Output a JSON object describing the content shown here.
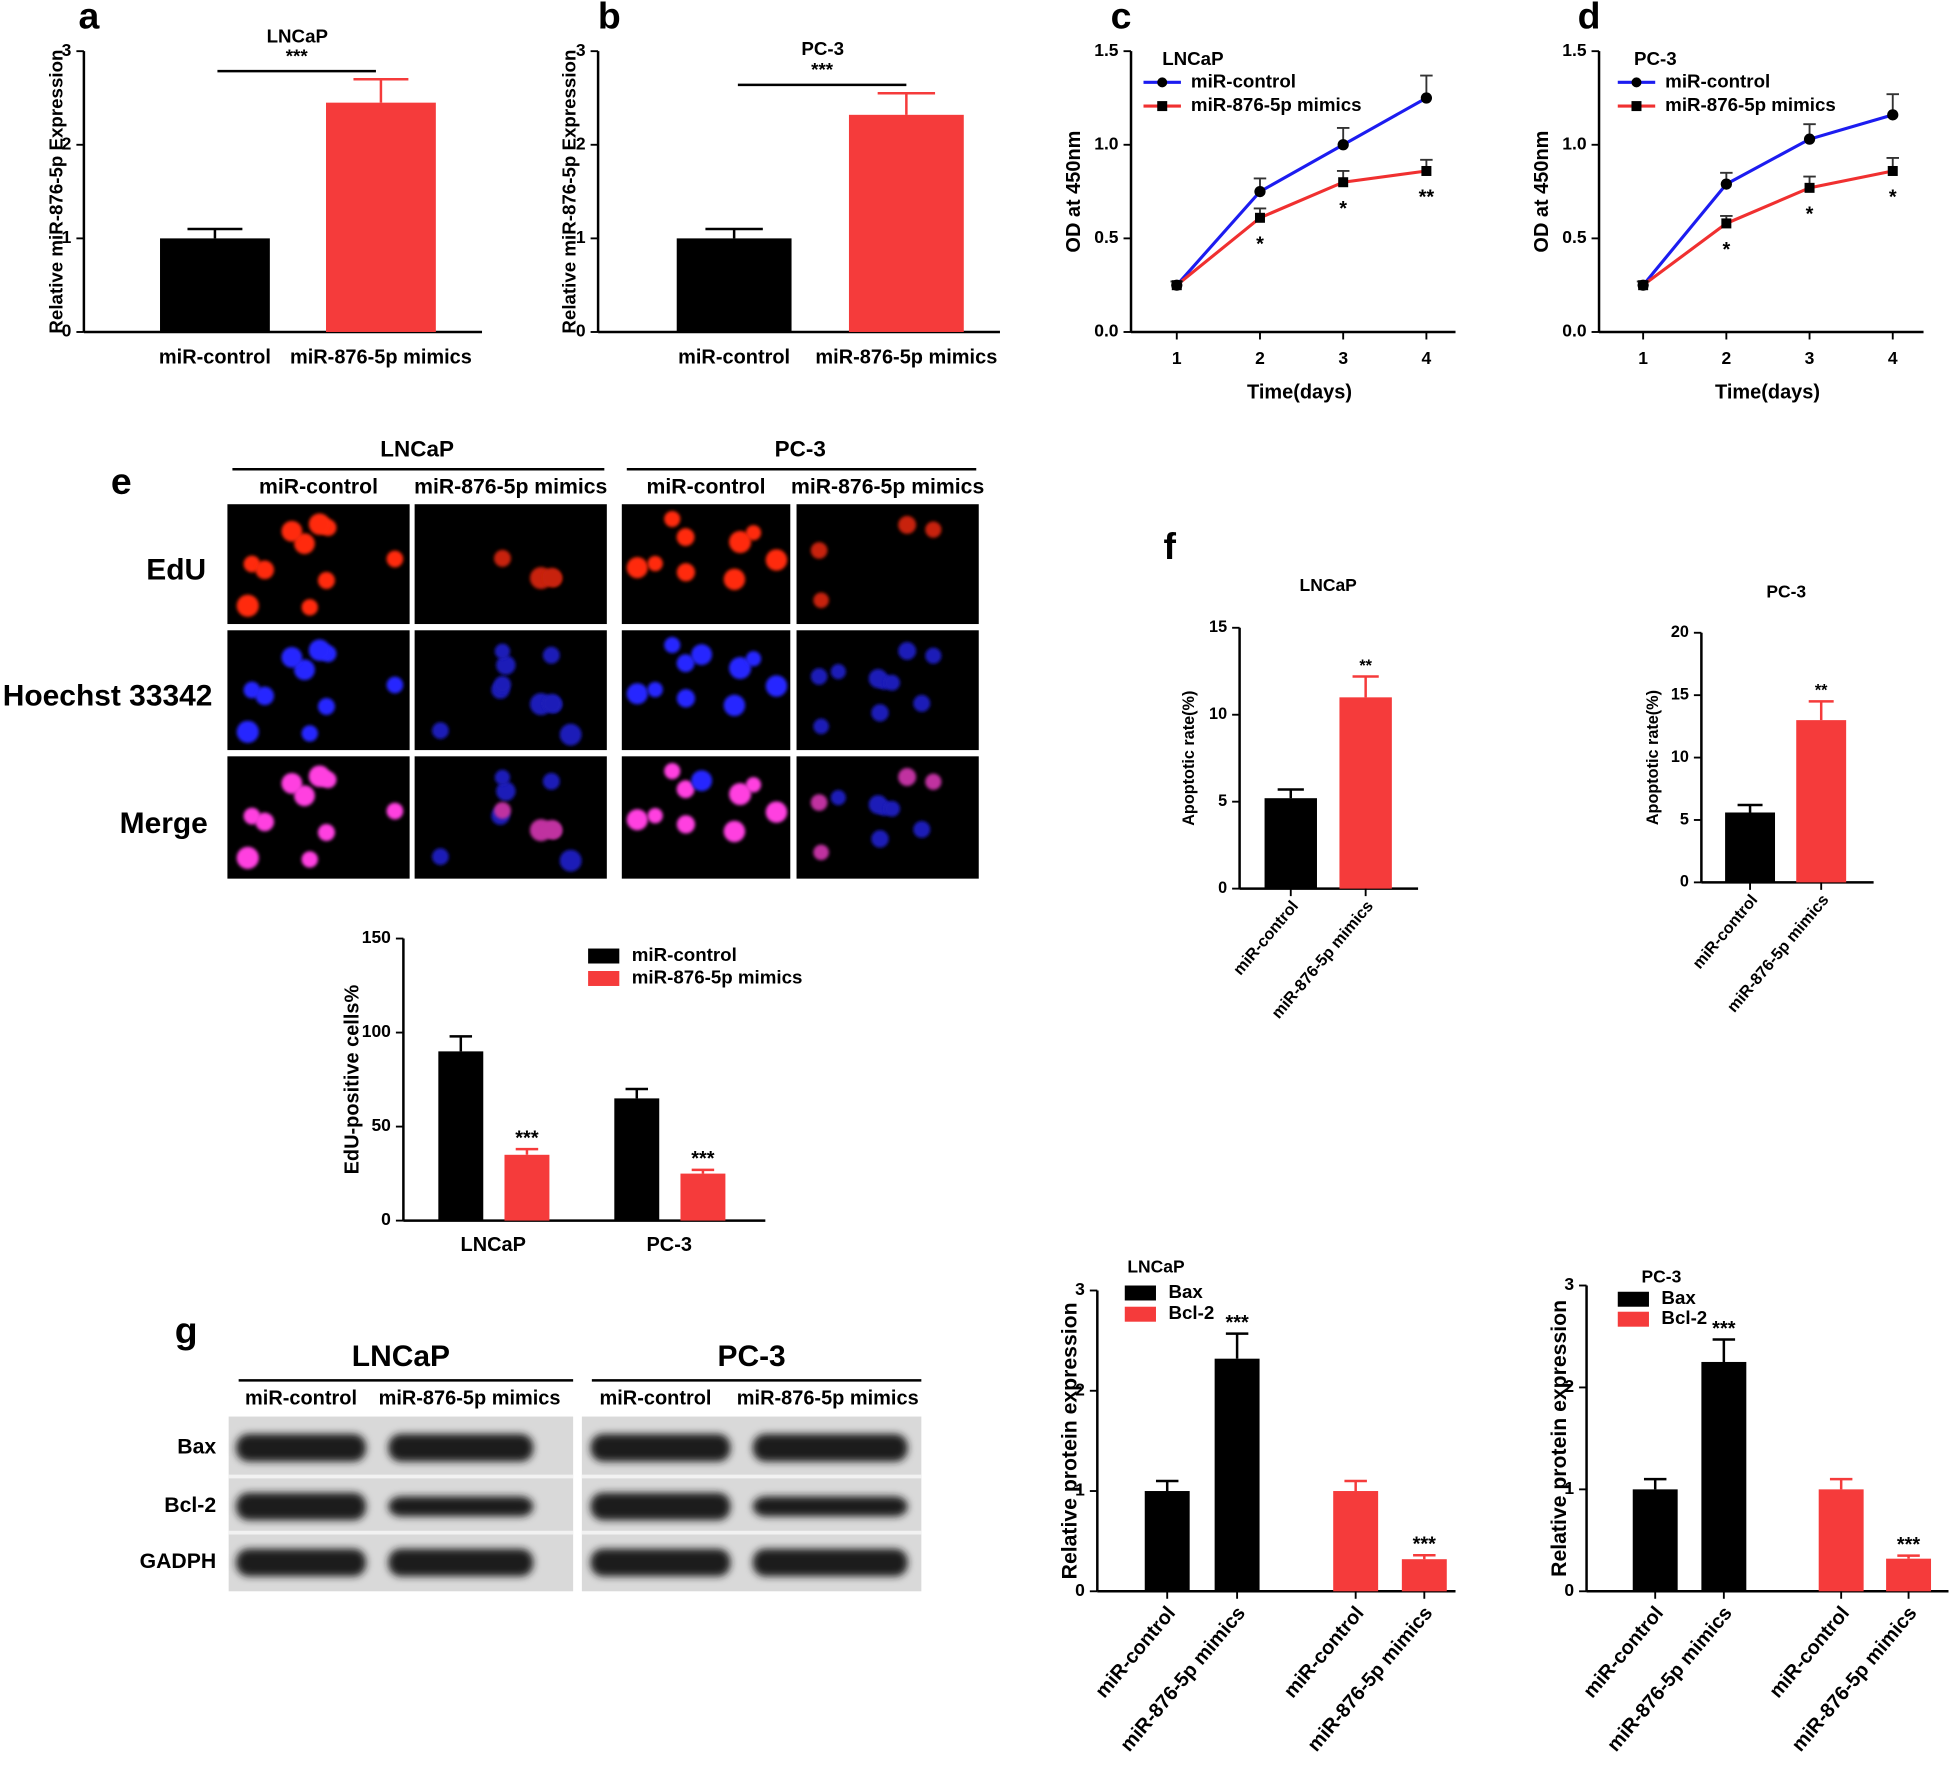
{
  "panel_letters": [
    "a",
    "b",
    "c",
    "d",
    "e",
    "f",
    "g"
  ],
  "chart_data": [
    {
      "type": "bar",
      "title": "LNCaP",
      "ylabel": "Relative miR-876-5p Expression",
      "categories": [
        "miR-control",
        "miR-876-5p mimics"
      ],
      "values": [
        1.0,
        2.45
      ],
      "errors": [
        0.1,
        0.25
      ],
      "colors": [
        "#000000",
        "#f53b3b"
      ],
      "ylim": [
        0,
        3
      ],
      "yticks": [
        0,
        1,
        2,
        3
      ],
      "annotation": "***"
    },
    {
      "type": "bar",
      "title": "PC-3",
      "ylabel": "Relative miR-876-5p Expression",
      "categories": [
        "miR-control",
        "miR-876-5p mimics"
      ],
      "values": [
        1.0,
        2.32
      ],
      "errors": [
        0.1,
        0.23
      ],
      "colors": [
        "#000000",
        "#f53b3b"
      ],
      "ylim": [
        0,
        3
      ],
      "yticks": [
        0,
        1,
        2,
        3
      ],
      "annotation": "***"
    },
    {
      "type": "line",
      "title": "LNCaP",
      "xlabel": "Time(days)",
      "ylabel": "OD at 450nm",
      "x": [
        1,
        2,
        3,
        4
      ],
      "xlim": [
        0.45,
        4.35
      ],
      "xticks": [
        1,
        2,
        3,
        4
      ],
      "ylim": [
        0,
        1.5
      ],
      "yticks": [
        {
          "value": 0,
          "label": "0.0"
        },
        0.5,
        {
          "value": 1,
          "label": "1.0"
        },
        1.5
      ],
      "series": [
        {
          "name": "miR-control",
          "color": "#1c1cf0",
          "values": [
            0.25,
            0.75,
            1.0,
            1.25
          ],
          "errors": [
            0.02,
            0.07,
            0.09,
            0.12
          ]
        },
        {
          "name": "miR-876-5p mimics",
          "color": "#f03030",
          "values": [
            0.25,
            0.61,
            0.8,
            0.86
          ],
          "errors": [
            0.02,
            0.05,
            0.06,
            0.06
          ],
          "significance": [
            null,
            "*",
            "*",
            "**"
          ]
        }
      ]
    },
    {
      "type": "line",
      "title": "PC-3",
      "xlabel": "Time(days)",
      "ylabel": "OD at 450nm",
      "x": [
        1,
        2,
        3,
        4
      ],
      "xlim": [
        0.47,
        4.37
      ],
      "xticks": [
        1,
        2,
        3,
        4
      ],
      "ylim": [
        0,
        1.5
      ],
      "yticks": [
        {
          "value": 0,
          "label": "0.0"
        },
        0.5,
        {
          "value": 1,
          "label": "1.0"
        },
        1.5
      ],
      "series": [
        {
          "name": "miR-control",
          "color": "#1c1cf0",
          "values": [
            0.25,
            0.79,
            1.03,
            1.16
          ],
          "errors": [
            0.02,
            0.06,
            0.08,
            0.11
          ]
        },
        {
          "name": "miR-876-5p mimics",
          "color": "#f03030",
          "values": [
            0.25,
            0.58,
            0.77,
            0.86
          ],
          "errors": [
            0.02,
            0.04,
            0.06,
            0.07
          ],
          "significance": [
            null,
            "*",
            "*",
            "*"
          ]
        }
      ]
    },
    {
      "type": "bar",
      "ylabel": "EdU-positive cells%",
      "categories": [
        "LNCaP",
        "PC-3"
      ],
      "ylim": [
        0,
        150
      ],
      "yticks": [
        0,
        50,
        100,
        150
      ],
      "series": [
        {
          "name": "miR-control",
          "color": "#000000",
          "values": [
            90,
            65
          ],
          "errors": [
            8,
            5
          ]
        },
        {
          "name": "miR-876-5p mimics",
          "color": "#f53b3b",
          "values": [
            35,
            25
          ],
          "errors": [
            3,
            2
          ],
          "significance": [
            "***",
            "***"
          ]
        }
      ]
    },
    {
      "type": "bar",
      "title": "LNCaP",
      "ylabel": "Apoptotic rate(%)",
      "categories": [
        "miR-control",
        "miR-876-5p mimics"
      ],
      "values": [
        5.2,
        11.0
      ],
      "errors": [
        0.5,
        1.2
      ],
      "colors": [
        "#000000",
        "#f53b3b"
      ],
      "significance": [
        null,
        "**"
      ],
      "ylim": [
        0,
        15
      ],
      "yticks": [
        0,
        5,
        10,
        15
      ]
    },
    {
      "type": "bar",
      "title": "PC-3",
      "ylabel": "Apoptotic rate(%)",
      "categories": [
        "miR-control",
        "miR-876-5p mimics"
      ],
      "values": [
        5.6,
        13.0
      ],
      "errors": [
        0.6,
        1.5
      ],
      "colors": [
        "#000000",
        "#f53b3b"
      ],
      "significance": [
        null,
        "**"
      ],
      "ylim": [
        0,
        20
      ],
      "yticks": [
        0,
        5,
        10,
        15,
        20
      ]
    },
    {
      "type": "bar",
      "title": "LNCaP",
      "ylabel": "Relative protein expression",
      "categories": [
        "miR-control",
        "miR-876-5p mimics",
        "miR-control",
        "miR-876-5p mimics"
      ],
      "ylim": [
        0,
        3
      ],
      "yticks": [
        0,
        1,
        2,
        3
      ],
      "series": [
        {
          "name": "Bax",
          "color": "#000000",
          "values": [
            1.0,
            2.32,
            null,
            null
          ],
          "errors": [
            0.1,
            0.25,
            null,
            null
          ],
          "significance": [
            null,
            "***",
            null,
            null
          ]
        },
        {
          "name": "Bcl-2",
          "color": "#f53b3b",
          "values": [
            null,
            null,
            1.0,
            0.32
          ],
          "errors": [
            null,
            null,
            0.1,
            0.04
          ],
          "significance": [
            null,
            null,
            null,
            "***"
          ]
        }
      ]
    },
    {
      "type": "bar",
      "title": "PC-3",
      "ylabel": "Relative protein expression",
      "categories": [
        "miR-control",
        "miR-876-5p mimics",
        "miR-control",
        "miR-876-5p mimics"
      ],
      "ylim": [
        0,
        3
      ],
      "yticks": [
        0,
        1,
        2,
        3
      ],
      "series": [
        {
          "name": "Bax",
          "color": "#000000",
          "values": [
            1.0,
            2.25,
            null,
            null
          ],
          "errors": [
            0.1,
            0.22,
            null,
            null
          ],
          "significance": [
            null,
            "***",
            null,
            null
          ]
        },
        {
          "name": "Bcl-2",
          "color": "#f53b3b",
          "values": [
            null,
            null,
            1.0,
            0.32
          ],
          "errors": [
            null,
            null,
            0.1,
            0.03
          ],
          "significance": [
            null,
            null,
            null,
            "***"
          ]
        }
      ]
    }
  ],
  "microscopy": {
    "groups": [
      {
        "name": "LNCaP",
        "columns": [
          "miR-control",
          "miR-876-5p mimics"
        ]
      },
      {
        "name": "PC-3",
        "columns": [
          "miR-control",
          "miR-876-5p mimics"
        ]
      }
    ],
    "rows": [
      "EdU",
      "Hoechst 33342",
      "Merge"
    ]
  },
  "western_blot": {
    "groups": [
      {
        "name": "LNCaP",
        "columns": [
          "miR-control",
          "miR-876-5p mimics"
        ]
      },
      {
        "name": "PC-3",
        "columns": [
          "miR-control",
          "miR-876-5p mimics"
        ]
      }
    ],
    "rows": [
      "Bax",
      "Bcl-2",
      "GADPH"
    ]
  }
}
